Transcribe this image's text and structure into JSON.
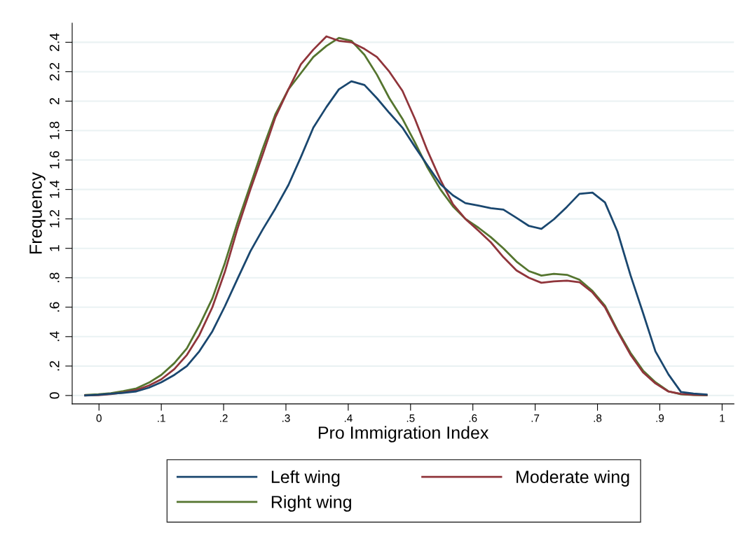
{
  "chart_data": {
    "type": "line",
    "xlabel": "Pro Immigration Index",
    "ylabel": "Frequency",
    "x": [
      -0.022,
      -0.001,
      0.019,
      0.039,
      0.06,
      0.08,
      0.1,
      0.121,
      0.141,
      0.161,
      0.182,
      0.202,
      0.222,
      0.243,
      0.263,
      0.283,
      0.304,
      0.324,
      0.344,
      0.365,
      0.385,
      0.405,
      0.426,
      0.446,
      0.466,
      0.487,
      0.507,
      0.527,
      0.548,
      0.568,
      0.588,
      0.609,
      0.629,
      0.649,
      0.67,
      0.69,
      0.71,
      0.73,
      0.751,
      0.771,
      0.792,
      0.812,
      0.832,
      0.853,
      0.873,
      0.893,
      0.914,
      0.934,
      0.954,
      0.975
    ],
    "series": [
      {
        "name": "Left wing",
        "color": "#1a476f",
        "values": [
          0,
          0.005,
          0.012,
          0.018,
          0.028,
          0.053,
          0.09,
          0.14,
          0.2,
          0.3,
          0.436,
          0.606,
          0.79,
          0.98,
          1.13,
          1.27,
          1.43,
          1.62,
          1.82,
          1.96,
          2.08,
          2.135,
          2.11,
          2.02,
          1.92,
          1.82,
          1.69,
          1.565,
          1.436,
          1.36,
          1.307,
          1.29,
          1.273,
          1.263,
          1.207,
          1.152,
          1.132,
          1.197,
          1.282,
          1.37,
          1.378,
          1.312,
          1.115,
          0.817,
          0.562,
          0.3,
          0.143,
          0.024,
          0.013,
          0.006
        ]
      },
      {
        "name": "Moderate wing",
        "color": "#90353b",
        "values": [
          0,
          0.003,
          0.01,
          0.02,
          0.037,
          0.067,
          0.11,
          0.18,
          0.275,
          0.41,
          0.6,
          0.84,
          1.13,
          1.4,
          1.64,
          1.89,
          2.08,
          2.25,
          2.35,
          2.44,
          2.41,
          2.4,
          2.355,
          2.3,
          2.2,
          2.07,
          1.88,
          1.665,
          1.465,
          1.3,
          1.2,
          1.12,
          1.04,
          0.94,
          0.85,
          0.8,
          0.766,
          0.775,
          0.78,
          0.77,
          0.7,
          0.6,
          0.437,
          0.277,
          0.158,
          0.082,
          0.027,
          0.011,
          0.005,
          0.003
        ]
      },
      {
        "name": "Right wing",
        "color": "#55752f",
        "values": [
          0.003,
          0.008,
          0.015,
          0.03,
          0.048,
          0.087,
          0.14,
          0.22,
          0.32,
          0.475,
          0.66,
          0.9,
          1.17,
          1.43,
          1.68,
          1.91,
          2.08,
          2.19,
          2.3,
          2.375,
          2.43,
          2.41,
          2.315,
          2.18,
          2.02,
          1.88,
          1.72,
          1.55,
          1.4,
          1.285,
          1.2,
          1.14,
          1.075,
          1.0,
          0.91,
          0.845,
          0.815,
          0.827,
          0.82,
          0.787,
          0.71,
          0.61,
          0.445,
          0.29,
          0.17,
          0.09,
          0.028,
          0.008,
          0.004,
          0.002
        ]
      }
    ],
    "xlim": [
      -0.043,
      1.019
    ],
    "ylim": [
      -0.057,
      2.53
    ],
    "xticks": [
      0,
      {
        "value": 0.1,
        "label": ".1"
      },
      {
        "value": 0.2,
        "label": ".2"
      },
      {
        "value": 0.3,
        "label": ".3"
      },
      {
        "value": 0.4,
        "label": ".4"
      },
      {
        "value": 0.5,
        "label": ".5"
      },
      {
        "value": 0.6,
        "label": ".6"
      },
      {
        "value": 0.7,
        "label": ".7"
      },
      {
        "value": 0.8,
        "label": ".8"
      },
      {
        "value": 0.9,
        "label": ".9"
      },
      1
    ],
    "yticks": [
      0,
      {
        "value": 0.2,
        "label": ".2"
      },
      {
        "value": 0.4,
        "label": ".4"
      },
      {
        "value": 0.6,
        "label": ".6"
      },
      {
        "value": 0.8,
        "label": ".8"
      },
      1,
      1.2,
      1.4,
      1.6,
      1.8,
      2,
      2.2,
      2.4
    ],
    "grid": "y",
    "legend": "bottom",
    "marker": "none",
    "line_style": "solid"
  }
}
